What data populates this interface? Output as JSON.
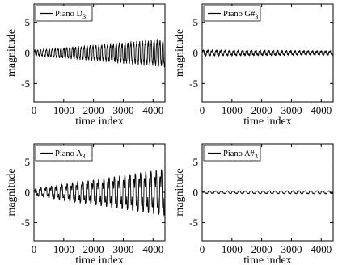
{
  "chart_data": [
    {
      "type": "line",
      "legend": "Piano D",
      "legend_sub": "3",
      "legend_sup": "",
      "legend_position": "top-left",
      "xlabel": "time index",
      "ylabel": "magnitude",
      "xlim": [
        0,
        4400
      ],
      "ylim": [
        -8,
        8
      ],
      "xticks": [
        0,
        1000,
        2000,
        3000,
        4000
      ],
      "yticks": [
        -5,
        0,
        5
      ],
      "signal": {
        "x_max": 4400,
        "cycles": 45,
        "env_start": 0.6,
        "env_end": 3.0,
        "offset": 0.0,
        "harmonic": 0.25
      }
    },
    {
      "type": "line",
      "legend": "Piano G#",
      "legend_sub": "3",
      "legend_sup": "",
      "legend_position": "top-left",
      "xlabel": "time index",
      "ylabel": "magnitude",
      "xlim": [
        0,
        4400
      ],
      "ylim": [
        -8,
        8
      ],
      "xticks": [
        0,
        1000,
        2000,
        3000,
        4000
      ],
      "yticks": [
        -5,
        0,
        5
      ],
      "signal": {
        "x_max": 4400,
        "cycles": 30,
        "env_start": 0.7,
        "env_end": 0.5,
        "offset": 0.0,
        "harmonic": 0.5
      }
    },
    {
      "type": "line",
      "legend": "Piano A",
      "legend_sub": "3",
      "legend_sup": "",
      "legend_position": "top-left",
      "xlabel": "time index",
      "ylabel": "magnitude",
      "xlim": [
        0,
        4400
      ],
      "ylim": [
        -8,
        8
      ],
      "xticks": [
        0,
        1000,
        2000,
        3000,
        4000
      ],
      "yticks": [
        -5,
        0,
        5
      ],
      "signal": {
        "x_max": 4400,
        "cycles": 25,
        "env_start": 0.8,
        "env_end": 5.5,
        "offset": 0.0,
        "harmonic": 0.55
      }
    },
    {
      "type": "line",
      "legend": "Piano A#",
      "legend_sub": "3",
      "legend_sup": "",
      "legend_position": "top-left",
      "xlabel": "time index",
      "ylabel": "magnitude",
      "xlim": [
        0,
        4400
      ],
      "ylim": [
        -8,
        8
      ],
      "xticks": [
        0,
        1000,
        2000,
        3000,
        4000
      ],
      "yticks": [
        -5,
        0,
        5
      ],
      "signal": {
        "x_max": 4400,
        "cycles": 22,
        "env_start": 0.3,
        "env_end": 0.35,
        "offset": 0.0,
        "harmonic": 0.3
      }
    }
  ]
}
